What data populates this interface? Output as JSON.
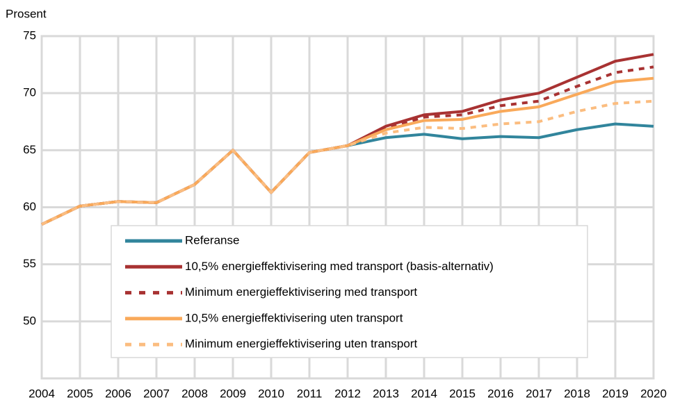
{
  "chart_data": {
    "type": "line",
    "y_axis_label": "Prosent",
    "x": [
      2004,
      2005,
      2006,
      2007,
      2008,
      2009,
      2010,
      2011,
      2012,
      2013,
      2014,
      2015,
      2016,
      2017,
      2018,
      2019,
      2020
    ],
    "xlim": [
      2004,
      2020
    ],
    "xticks": [
      2004,
      2005,
      2006,
      2007,
      2008,
      2009,
      2010,
      2011,
      2012,
      2013,
      2014,
      2015,
      2016,
      2017,
      2018,
      2019,
      2020
    ],
    "ylim": [
      45,
      75
    ],
    "yticks": [
      50,
      55,
      60,
      65,
      70,
      75
    ],
    "grid": true,
    "legend": "lower center",
    "series": [
      {
        "name": "Referanse",
        "color": "#31859c",
        "dashed": false,
        "values": [
          58.5,
          60.1,
          60.5,
          60.4,
          62.0,
          65.0,
          61.3,
          64.8,
          65.4,
          66.1,
          66.4,
          66.0,
          66.2,
          66.1,
          66.8,
          67.3,
          67.1
        ]
      },
      {
        "name": "10,5% energieffektivisering med transport (basis-alternativ)",
        "color": "#a83232",
        "dashed": false,
        "values": [
          58.5,
          60.1,
          60.5,
          60.4,
          62.0,
          65.0,
          61.3,
          64.8,
          65.4,
          67.1,
          68.1,
          68.4,
          69.4,
          70.0,
          71.4,
          72.8,
          73.4
        ]
      },
      {
        "name": "Minimum energieffektivisering med transport",
        "color": "#a83232",
        "dashed": true,
        "values": [
          58.5,
          60.1,
          60.5,
          60.4,
          62.0,
          65.0,
          61.3,
          64.8,
          65.4,
          66.9,
          67.9,
          68.1,
          68.9,
          69.3,
          70.6,
          71.8,
          72.3
        ]
      },
      {
        "name": "10,5% energieffektivisering uten transport",
        "color": "#f9a95a",
        "dashed": false,
        "values": [
          58.5,
          60.1,
          60.5,
          60.4,
          62.0,
          65.0,
          61.3,
          64.8,
          65.4,
          66.8,
          67.6,
          67.7,
          68.4,
          68.8,
          69.9,
          71.0,
          71.3
        ]
      },
      {
        "name": "Minimum energieffektivisering uten transport",
        "color": "#fbbd80",
        "dashed": true,
        "values": [
          58.5,
          60.1,
          60.5,
          60.4,
          62.0,
          65.0,
          61.3,
          64.8,
          65.4,
          66.5,
          67.0,
          66.9,
          67.3,
          67.5,
          68.4,
          69.1,
          69.3
        ]
      }
    ]
  }
}
